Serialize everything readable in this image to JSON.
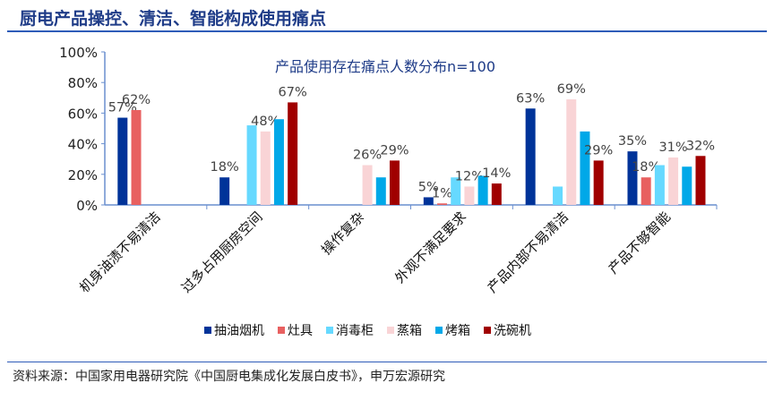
{
  "header": {
    "title": "厨电产品操控、清洁、智能构成使用痛点"
  },
  "footer": {
    "source": "资料来源：中国家用电器研究院《中国厨电集成化发展白皮书》，申万宏源研究"
  },
  "chart_data": {
    "type": "bar",
    "title": "产品使用存在痛点人数分布n=100",
    "xlabel": "",
    "ylabel": "",
    "ylim": [
      0,
      100
    ],
    "yticks": [
      "0%",
      "20%",
      "40%",
      "60%",
      "80%",
      "100%"
    ],
    "grid": false,
    "legend": "bottom",
    "categories": [
      "机身油渍不易清洁",
      "过多占用厨房空间",
      "操作复杂",
      "外观不满足要求",
      "产品内部不易清洁",
      "产品不够智能"
    ],
    "series": [
      {
        "name": "抽油烟机",
        "color": "#003399",
        "values": [
          57,
          18,
          null,
          5,
          63,
          35
        ],
        "labels": [
          "57%",
          "18%",
          null,
          "5%",
          "63%",
          "35%"
        ]
      },
      {
        "name": "灶具",
        "color": "#e86060",
        "values": [
          62,
          null,
          null,
          1,
          null,
          18
        ],
        "labels": [
          "62%",
          null,
          null,
          "1%",
          null,
          "18%"
        ]
      },
      {
        "name": "消毒柜",
        "color": "#66d9ff",
        "values": [
          null,
          52,
          null,
          18,
          12,
          26
        ],
        "labels": [
          null,
          null,
          null,
          null,
          null,
          null
        ]
      },
      {
        "name": "蒸箱",
        "color": "#f9d4d6",
        "values": [
          null,
          48,
          26,
          12,
          69,
          31
        ],
        "labels": [
          null,
          "48%",
          "26%",
          "12%",
          "69%",
          "31%"
        ]
      },
      {
        "name": "烤箱",
        "color": "#00a8e8",
        "values": [
          null,
          56,
          18,
          19,
          48,
          25
        ],
        "labels": [
          null,
          null,
          null,
          null,
          null,
          null
        ]
      },
      {
        "name": "洗碗机",
        "color": "#a00000",
        "values": [
          null,
          67,
          29,
          14,
          29,
          32
        ],
        "labels": [
          null,
          "67%",
          "29%",
          "14%",
          "29%",
          "32%"
        ]
      }
    ]
  }
}
